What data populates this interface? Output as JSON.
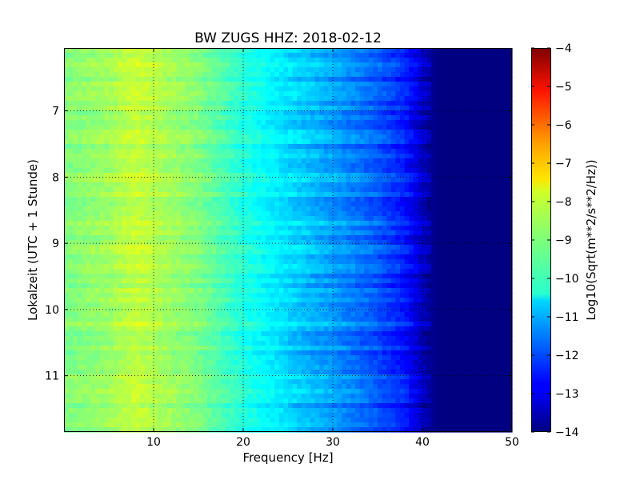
{
  "chart_data": {
    "type": "heatmap",
    "title": "BW ZUGS HHZ: 2018-02-12",
    "xlabel": "Frequency [Hz]",
    "ylabel": "Lokalzeit (UTC + 1 Stunde)",
    "xlim": [
      0,
      50
    ],
    "ylim": [
      11.85,
      6.05
    ],
    "x_ticks": [
      10,
      20,
      30,
      40,
      50
    ],
    "y_ticks": [
      7,
      8,
      9,
      10,
      11
    ],
    "grid": true,
    "colormap": "jet",
    "colorbar": {
      "label": "Log10(Sqrt(m**2/s**2/Hz))",
      "range": [
        -14,
        -4
      ],
      "ticks": [
        -4,
        -5,
        -6,
        -7,
        -8,
        -9,
        -10,
        -11,
        -12,
        -13,
        -14
      ]
    },
    "profile": {
      "frequency_hz": [
        0,
        5,
        8,
        10,
        15,
        20,
        25,
        30,
        35,
        38,
        40,
        41,
        42,
        50
      ],
      "log10_amplitude": [
        -9.0,
        -8.7,
        -8.3,
        -8.5,
        -9.0,
        -9.9,
        -10.6,
        -11.2,
        -11.9,
        -12.5,
        -13.3,
        -13.8,
        -14.0,
        -14.0
      ]
    }
  }
}
